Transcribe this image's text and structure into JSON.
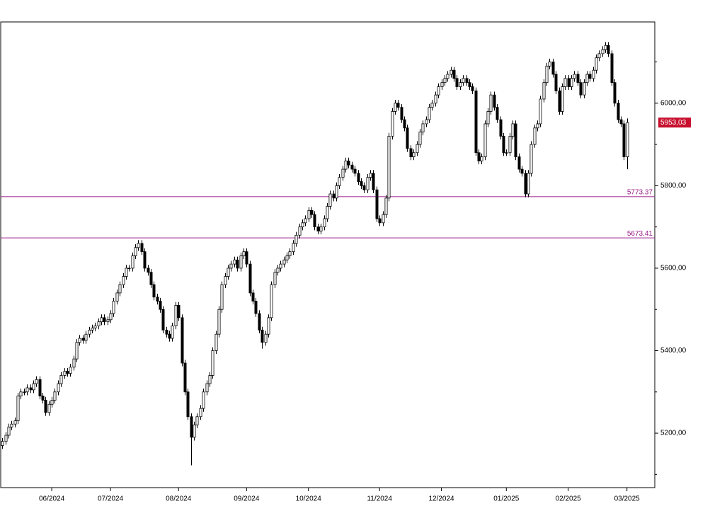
{
  "chart_data": {
    "type": "candlestick",
    "up_color": "#ffffff",
    "down_color": "#000000",
    "line_color": "#000000",
    "xlim": [
      -0.5,
      211
    ],
    "ylim": [
      5068,
      6197
    ],
    "xticks": [
      {
        "value": 16,
        "label": "06/2024"
      },
      {
        "value": 35,
        "label": "07/2024"
      },
      {
        "value": 57,
        "label": "08/2024"
      },
      {
        "value": 79,
        "label": "09/2024"
      },
      {
        "value": 99,
        "label": "10/2024"
      },
      {
        "value": 122,
        "label": "11/2024"
      },
      {
        "value": 142,
        "label": "12/2024"
      },
      {
        "value": 163,
        "label": "01/2025"
      },
      {
        "value": 183,
        "label": "02/2025"
      },
      {
        "value": 202,
        "label": "03/2025"
      }
    ],
    "yticks": [
      {
        "value": 5200,
        "label": "5200,00"
      },
      {
        "value": 5400,
        "label": "5400,00"
      },
      {
        "value": 5600,
        "label": "5600,00"
      },
      {
        "value": 5800,
        "label": "5800,00"
      },
      {
        "value": 6000,
        "label": "6000,00"
      }
    ],
    "yminor": [
      5100,
      5300,
      5500,
      5700,
      5900,
      6100
    ],
    "lines": [
      {
        "value": 5773.37,
        "color": "#9b1b8a"
      },
      {
        "value": 5673.41,
        "color": "#9b1b8a"
      }
    ],
    "last": {
      "value": 5953.03,
      "label": "5953,03",
      "color": "#c8102e"
    },
    "ohlc": [
      [
        5170,
        5188,
        5162,
        5180
      ],
      [
        5180,
        5203,
        5172,
        5195
      ],
      [
        5195,
        5223,
        5187,
        5215
      ],
      [
        5215,
        5230,
        5207,
        5222
      ],
      [
        5222,
        5238,
        5214,
        5230
      ],
      [
        5230,
        5298,
        5222,
        5290
      ],
      [
        5290,
        5308,
        5282,
        5300
      ],
      [
        5300,
        5308,
        5292,
        5300
      ],
      [
        5300,
        5318,
        5292,
        5310
      ],
      [
        5310,
        5318,
        5297,
        5305
      ],
      [
        5305,
        5328,
        5297,
        5320
      ],
      [
        5320,
        5338,
        5312,
        5330
      ],
      [
        5330,
        5338,
        5282,
        5290
      ],
      [
        5290,
        5298,
        5272,
        5280
      ],
      [
        5280,
        5288,
        5242,
        5250
      ],
      [
        5250,
        5278,
        5242,
        5270
      ],
      [
        5270,
        5288,
        5262,
        5280
      ],
      [
        5280,
        5308,
        5272,
        5300
      ],
      [
        5300,
        5328,
        5292,
        5320
      ],
      [
        5320,
        5348,
        5312,
        5340
      ],
      [
        5340,
        5358,
        5332,
        5350
      ],
      [
        5350,
        5358,
        5337,
        5345
      ],
      [
        5345,
        5368,
        5337,
        5360
      ],
      [
        5360,
        5388,
        5352,
        5380
      ],
      [
        5380,
        5428,
        5372,
        5420
      ],
      [
        5420,
        5438,
        5412,
        5430
      ],
      [
        5430,
        5438,
        5417,
        5425
      ],
      [
        5425,
        5448,
        5417,
        5440
      ],
      [
        5440,
        5458,
        5432,
        5450
      ],
      [
        5450,
        5463,
        5442,
        5455
      ],
      [
        5455,
        5468,
        5447,
        5460
      ],
      [
        5460,
        5478,
        5452,
        5470
      ],
      [
        5470,
        5488,
        5462,
        5480
      ],
      [
        5480,
        5488,
        5462,
        5470
      ],
      [
        5470,
        5483,
        5462,
        5475
      ],
      [
        5475,
        5498,
        5467,
        5490
      ],
      [
        5490,
        5528,
        5482,
        5520
      ],
      [
        5520,
        5548,
        5512,
        5540
      ],
      [
        5540,
        5568,
        5532,
        5560
      ],
      [
        5560,
        5588,
        5552,
        5580
      ],
      [
        5580,
        5608,
        5572,
        5600
      ],
      [
        5600,
        5608,
        5592,
        5600
      ],
      [
        5600,
        5638,
        5592,
        5630
      ],
      [
        5630,
        5658,
        5622,
        5650
      ],
      [
        5650,
        5668,
        5642,
        5660
      ],
      [
        5660,
        5668,
        5632,
        5640
      ],
      [
        5640,
        5648,
        5592,
        5600
      ],
      [
        5600,
        5608,
        5582,
        5590
      ],
      [
        5590,
        5598,
        5552,
        5560
      ],
      [
        5560,
        5568,
        5522,
        5530
      ],
      [
        5530,
        5538,
        5512,
        5520
      ],
      [
        5520,
        5528,
        5492,
        5500
      ],
      [
        5500,
        5508,
        5442,
        5450
      ],
      [
        5450,
        5458,
        5432,
        5440
      ],
      [
        5440,
        5448,
        5422,
        5430
      ],
      [
        5430,
        5468,
        5422,
        5460
      ],
      [
        5460,
        5518,
        5452,
        5510
      ],
      [
        5510,
        5518,
        5472,
        5480
      ],
      [
        5480,
        5488,
        5362,
        5370
      ],
      [
        5370,
        5378,
        5292,
        5300
      ],
      [
        5300,
        5308,
        5232,
        5240
      ],
      [
        5240,
        5248,
        5122,
        5190
      ],
      [
        5190,
        5228,
        5182,
        5220
      ],
      [
        5220,
        5248,
        5212,
        5240
      ],
      [
        5240,
        5268,
        5232,
        5260
      ],
      [
        5260,
        5308,
        5252,
        5300
      ],
      [
        5300,
        5328,
        5292,
        5320
      ],
      [
        5320,
        5348,
        5312,
        5340
      ],
      [
        5340,
        5408,
        5332,
        5400
      ],
      [
        5400,
        5448,
        5392,
        5440
      ],
      [
        5440,
        5508,
        5432,
        5500
      ],
      [
        5500,
        5568,
        5492,
        5560
      ],
      [
        5560,
        5588,
        5552,
        5580
      ],
      [
        5580,
        5608,
        5572,
        5600
      ],
      [
        5600,
        5618,
        5592,
        5610
      ],
      [
        5610,
        5628,
        5602,
        5620
      ],
      [
        5620,
        5628,
        5592,
        5600
      ],
      [
        5600,
        5638,
        5592,
        5630
      ],
      [
        5630,
        5648,
        5622,
        5640
      ],
      [
        5640,
        5648,
        5602,
        5610
      ],
      [
        5610,
        5618,
        5532,
        5540
      ],
      [
        5540,
        5548,
        5512,
        5520
      ],
      [
        5520,
        5528,
        5482,
        5490
      ],
      [
        5490,
        5498,
        5442,
        5450
      ],
      [
        5450,
        5458,
        5405,
        5420
      ],
      [
        5420,
        5448,
        5412,
        5440
      ],
      [
        5440,
        5488,
        5432,
        5480
      ],
      [
        5480,
        5568,
        5472,
        5560
      ],
      [
        5560,
        5598,
        5552,
        5590
      ],
      [
        5590,
        5608,
        5582,
        5600
      ],
      [
        5600,
        5618,
        5592,
        5610
      ],
      [
        5610,
        5628,
        5602,
        5620
      ],
      [
        5620,
        5638,
        5612,
        5630
      ],
      [
        5630,
        5648,
        5622,
        5640
      ],
      [
        5640,
        5668,
        5632,
        5660
      ],
      [
        5660,
        5688,
        5652,
        5680
      ],
      [
        5680,
        5708,
        5672,
        5700
      ],
      [
        5700,
        5718,
        5692,
        5710
      ],
      [
        5710,
        5728,
        5702,
        5720
      ],
      [
        5720,
        5748,
        5712,
        5740
      ],
      [
        5740,
        5748,
        5722,
        5730
      ],
      [
        5730,
        5738,
        5692,
        5700
      ],
      [
        5700,
        5708,
        5682,
        5690
      ],
      [
        5690,
        5708,
        5682,
        5700
      ],
      [
        5700,
        5728,
        5692,
        5720
      ],
      [
        5720,
        5758,
        5712,
        5750
      ],
      [
        5750,
        5788,
        5742,
        5780
      ],
      [
        5780,
        5788,
        5762,
        5770
      ],
      [
        5770,
        5808,
        5762,
        5800
      ],
      [
        5800,
        5828,
        5792,
        5820
      ],
      [
        5820,
        5848,
        5812,
        5840
      ],
      [
        5840,
        5868,
        5832,
        5860
      ],
      [
        5860,
        5868,
        5842,
        5850
      ],
      [
        5850,
        5858,
        5832,
        5840
      ],
      [
        5840,
        5848,
        5822,
        5830
      ],
      [
        5830,
        5838,
        5802,
        5810
      ],
      [
        5810,
        5818,
        5792,
        5800
      ],
      [
        5800,
        5808,
        5782,
        5790
      ],
      [
        5790,
        5828,
        5782,
        5820
      ],
      [
        5820,
        5838,
        5812,
        5830
      ],
      [
        5830,
        5838,
        5782,
        5790
      ],
      [
        5790,
        5798,
        5712,
        5720
      ],
      [
        5720,
        5728,
        5702,
        5710
      ],
      [
        5710,
        5738,
        5702,
        5730
      ],
      [
        5730,
        5778,
        5722,
        5770
      ],
      [
        5770,
        5928,
        5762,
        5920
      ],
      [
        5920,
        5988,
        5912,
        5980
      ],
      [
        5980,
        6008,
        5972,
        6000
      ],
      [
        6000,
        6008,
        5982,
        5990
      ],
      [
        5990,
        5998,
        5952,
        5960
      ],
      [
        5960,
        5968,
        5932,
        5940
      ],
      [
        5940,
        5948,
        5882,
        5890
      ],
      [
        5890,
        5898,
        5862,
        5870
      ],
      [
        5870,
        5888,
        5862,
        5880
      ],
      [
        5880,
        5908,
        5872,
        5900
      ],
      [
        5900,
        5938,
        5892,
        5930
      ],
      [
        5930,
        5958,
        5922,
        5950
      ],
      [
        5950,
        5968,
        5942,
        5960
      ],
      [
        5960,
        5998,
        5952,
        5990
      ],
      [
        5990,
        6008,
        5982,
        6000
      ],
      [
        6000,
        6028,
        5992,
        6020
      ],
      [
        6020,
        6048,
        6012,
        6040
      ],
      [
        6040,
        6058,
        6032,
        6050
      ],
      [
        6050,
        6068,
        6042,
        6060
      ],
      [
        6060,
        6078,
        6052,
        6070
      ],
      [
        6070,
        6088,
        6062,
        6080
      ],
      [
        6080,
        6088,
        6052,
        6060
      ],
      [
        6060,
        6068,
        6032,
        6040
      ],
      [
        6040,
        6058,
        6032,
        6050
      ],
      [
        6050,
        6068,
        6042,
        6060
      ],
      [
        6060,
        6068,
        6042,
        6050
      ],
      [
        6050,
        6058,
        6032,
        6040
      ],
      [
        6040,
        6048,
        6022,
        6030
      ],
      [
        6030,
        6038,
        5872,
        5880
      ],
      [
        5880,
        5888,
        5852,
        5860
      ],
      [
        5860,
        5878,
        5852,
        5870
      ],
      [
        5870,
        5958,
        5862,
        5950
      ],
      [
        5950,
        5988,
        5942,
        5980
      ],
      [
        5980,
        6028,
        5972,
        6020
      ],
      [
        6020,
        6028,
        5982,
        5990
      ],
      [
        5990,
        5998,
        5952,
        5960
      ],
      [
        5960,
        5968,
        5912,
        5920
      ],
      [
        5920,
        5928,
        5872,
        5880
      ],
      [
        5880,
        5888,
        5872,
        5880
      ],
      [
        5880,
        5928,
        5872,
        5920
      ],
      [
        5920,
        5958,
        5912,
        5950
      ],
      [
        5950,
        5958,
        5862,
        5870
      ],
      [
        5870,
        5878,
        5832,
        5840
      ],
      [
        5840,
        5848,
        5822,
        5830
      ],
      [
        5830,
        5838,
        5772,
        5780
      ],
      [
        5780,
        5838,
        5772,
        5830
      ],
      [
        5830,
        5908,
        5822,
        5900
      ],
      [
        5900,
        5948,
        5892,
        5940
      ],
      [
        5940,
        5958,
        5932,
        5950
      ],
      [
        5950,
        6018,
        5942,
        6010
      ],
      [
        6010,
        6058,
        6002,
        6050
      ],
      [
        6050,
        6098,
        6042,
        6090
      ],
      [
        6090,
        6108,
        6082,
        6100
      ],
      [
        6100,
        6108,
        6062,
        6070
      ],
      [
        6070,
        6078,
        6022,
        6030
      ],
      [
        6030,
        6038,
        5972,
        5980
      ],
      [
        5980,
        6048,
        5972,
        6040
      ],
      [
        6040,
        6068,
        6032,
        6060
      ],
      [
        6060,
        6068,
        6032,
        6040
      ],
      [
        6040,
        6068,
        6032,
        6060
      ],
      [
        6060,
        6078,
        6052,
        6070
      ],
      [
        6070,
        6078,
        6042,
        6050
      ],
      [
        6050,
        6058,
        6012,
        6020
      ],
      [
        6020,
        6058,
        6012,
        6050
      ],
      [
        6050,
        6078,
        6042,
        6070
      ],
      [
        6070,
        6078,
        6052,
        6060
      ],
      [
        6060,
        6088,
        6052,
        6080
      ],
      [
        6080,
        6118,
        6072,
        6110
      ],
      [
        6110,
        6128,
        6102,
        6120
      ],
      [
        6120,
        6138,
        6112,
        6130
      ],
      [
        6130,
        6148,
        6122,
        6140
      ],
      [
        6140,
        6148,
        6112,
        6120
      ],
      [
        6120,
        6128,
        6042,
        6050
      ],
      [
        6050,
        6058,
        5992,
        6000
      ],
      [
        6000,
        6008,
        5952,
        5960
      ],
      [
        5960,
        5968,
        5942,
        5950
      ],
      [
        5950,
        5958,
        5862,
        5870
      ],
      [
        5870,
        5963,
        5840,
        5953.03
      ]
    ]
  }
}
